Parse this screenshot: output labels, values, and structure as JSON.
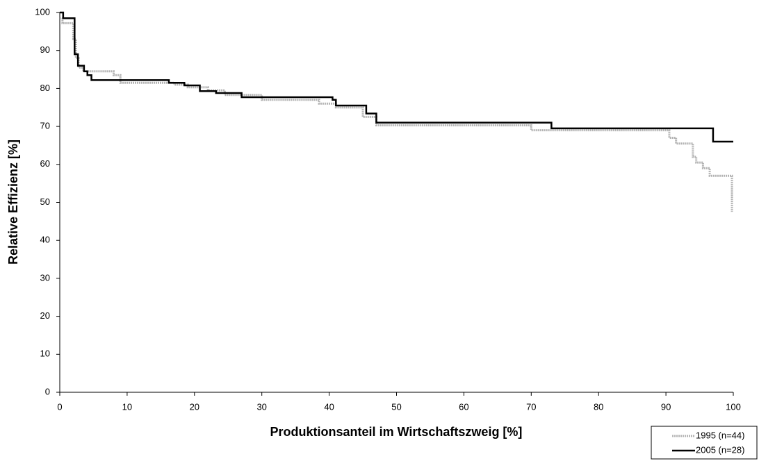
{
  "chart_data": {
    "type": "line",
    "x_label": "Produktionsanteil im Wirtschaftszweig [%]",
    "y_label": "Relative Effizienz [%]",
    "xlim": [
      0,
      100
    ],
    "xticks": [
      0,
      10,
      20,
      30,
      40,
      50,
      60,
      70,
      80,
      90,
      100
    ],
    "ylim": [
      0,
      100
    ],
    "yticks": [
      0,
      10,
      20,
      30,
      40,
      50,
      60,
      70,
      80,
      90,
      100
    ],
    "legend": "bottom-right",
    "series": [
      {
        "name": "1995 (n=44)",
        "color": "#b3b3b3",
        "x": [
          0,
          0.4,
          0.4,
          2,
          2,
          2.4,
          2.4,
          2.8,
          2.8,
          3.5,
          3.5,
          8,
          8,
          9,
          9,
          17,
          17,
          19,
          19,
          22,
          22,
          24.5,
          24.5,
          30,
          30,
          38.5,
          38.5,
          41,
          41,
          45,
          45,
          47,
          47,
          70,
          70,
          90.5,
          90.5,
          91.5,
          91.5,
          94,
          94,
          94.5,
          94.5,
          95.5,
          95.5,
          96.5,
          96.5,
          99.8,
          99.8
        ],
        "values": [
          98.5,
          98.5,
          97.2,
          97.2,
          93,
          93,
          88,
          88,
          85.5,
          85.5,
          84.5,
          84.5,
          83.5,
          83.5,
          81.5,
          81.5,
          81,
          81,
          80.3,
          80.3,
          79.5,
          79.5,
          78.3,
          78.3,
          77,
          77,
          76,
          76,
          75,
          75,
          72.5,
          72.5,
          70.3,
          70.3,
          69,
          69,
          67,
          67,
          65.5,
          65.5,
          62,
          62,
          60.5,
          60.5,
          59,
          59,
          57,
          57,
          47.5
        ]
      },
      {
        "name": "2005 (n=28)",
        "color": "#000000",
        "x": [
          0,
          0.5,
          0.5,
          2.2,
          2.2,
          2.7,
          2.7,
          3.6,
          3.6,
          4.1,
          4.1,
          4.7,
          4.7,
          16.2,
          16.2,
          18.5,
          18.5,
          20.8,
          20.8,
          23.2,
          23.2,
          27,
          27,
          40.5,
          40.5,
          41,
          41,
          45.5,
          45.5,
          47,
          47,
          73,
          73,
          97,
          97,
          100
        ],
        "values": [
          100,
          100,
          98.5,
          98.5,
          89,
          89,
          86,
          86,
          84.5,
          84.5,
          83.5,
          83.5,
          82.2,
          82.2,
          81.5,
          81.5,
          80.8,
          80.8,
          79.3,
          79.3,
          78.8,
          78.8,
          77.7,
          77.7,
          77,
          77,
          75.5,
          75.5,
          73.4,
          73.4,
          71,
          71,
          69.5,
          69.5,
          66,
          66
        ]
      }
    ]
  }
}
